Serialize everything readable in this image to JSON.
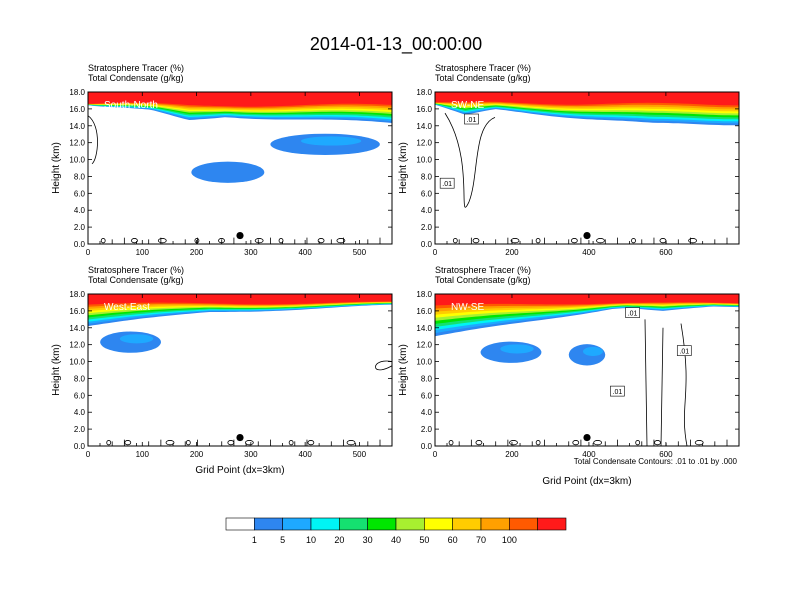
{
  "title": "2014-01-13_00:00:00",
  "colors": {
    "levels": [
      "#ffffff",
      "#2e86f0",
      "#1ea9ff",
      "#00f4f4",
      "#15e070",
      "#00e600",
      "#a8f030",
      "#ffff00",
      "#ffcc00",
      "#ffa000",
      "#ff5a00",
      "#ff1a1a"
    ]
  },
  "colorbar": {
    "labels": [
      "1",
      "5",
      "10",
      "20",
      "30",
      "40",
      "50",
      "60",
      "70",
      "100"
    ]
  },
  "footnote": "Total Condensate Contours: .01 to .01 by .000",
  "chart_data": [
    {
      "type": "heatmap",
      "header_line1": "Stratosphere Tracer   (%)",
      "header_line2": "Total Condensate   (g/kg)",
      "panel_label": "South-North",
      "ylabel": "Height (km)",
      "xlabel": "",
      "xlim": [
        0,
        560
      ],
      "ylim": [
        0,
        18
      ],
      "xticks": [
        "0",
        "100",
        "200",
        "300",
        "400",
        "500"
      ],
      "yticks": [
        "0.0",
        "2.0",
        "4.0",
        "6.0",
        "8.0",
        "10.0",
        "12.0",
        "14.0",
        "16.0",
        "18.0"
      ],
      "marker_x": 280,
      "contour_labels": []
    },
    {
      "type": "heatmap",
      "header_line1": "Stratosphere Tracer   (%)",
      "header_line2": "Total Condensate   (g/kg)",
      "panel_label": "SW-NE",
      "ylabel": "Height (km)",
      "xlabel": "",
      "xlim": [
        0,
        790
      ],
      "ylim": [
        0,
        18
      ],
      "xticks": [
        "0",
        "200",
        "400",
        "600"
      ],
      "yticks": [
        "0.0",
        "2.0",
        "4.0",
        "6.0",
        "8.0",
        "10.0",
        "12.0",
        "14.0",
        "16.0",
        "18.0"
      ],
      "marker_x": 395,
      "contour_labels": [
        ".01",
        ".01"
      ]
    },
    {
      "type": "heatmap",
      "header_line1": "Stratosphere Tracer   (%)",
      "header_line2": "Total Condensate   (g/kg)",
      "panel_label": "West-East",
      "ylabel": "Height (km)",
      "xlabel": "Grid Point (dx=3km)",
      "xlim": [
        0,
        560
      ],
      "ylim": [
        0,
        18
      ],
      "xticks": [
        "0",
        "100",
        "200",
        "300",
        "400",
        "500"
      ],
      "yticks": [
        "0.0",
        "2.0",
        "4.0",
        "6.0",
        "8.0",
        "10.0",
        "12.0",
        "14.0",
        "16.0",
        "18.0"
      ],
      "marker_x": 280,
      "contour_labels": []
    },
    {
      "type": "heatmap",
      "header_line1": "Stratosphere Tracer   (%)",
      "header_line2": "Total Condensate   (g/kg)",
      "panel_label": "NW-SE",
      "ylabel": "Height (km)",
      "xlabel": "Grid Point (dx=3km)",
      "xlim": [
        0,
        790
      ],
      "ylim": [
        0,
        18
      ],
      "xticks": [
        "0",
        "200",
        "400",
        "600"
      ],
      "yticks": [
        "0.0",
        "2.0",
        "4.0",
        "6.0",
        "8.0",
        "10.0",
        "12.0",
        "14.0",
        "16.0",
        "18.0"
      ],
      "marker_x": 395,
      "contour_labels": [
        ".01",
        ".01",
        ".01"
      ]
    }
  ]
}
